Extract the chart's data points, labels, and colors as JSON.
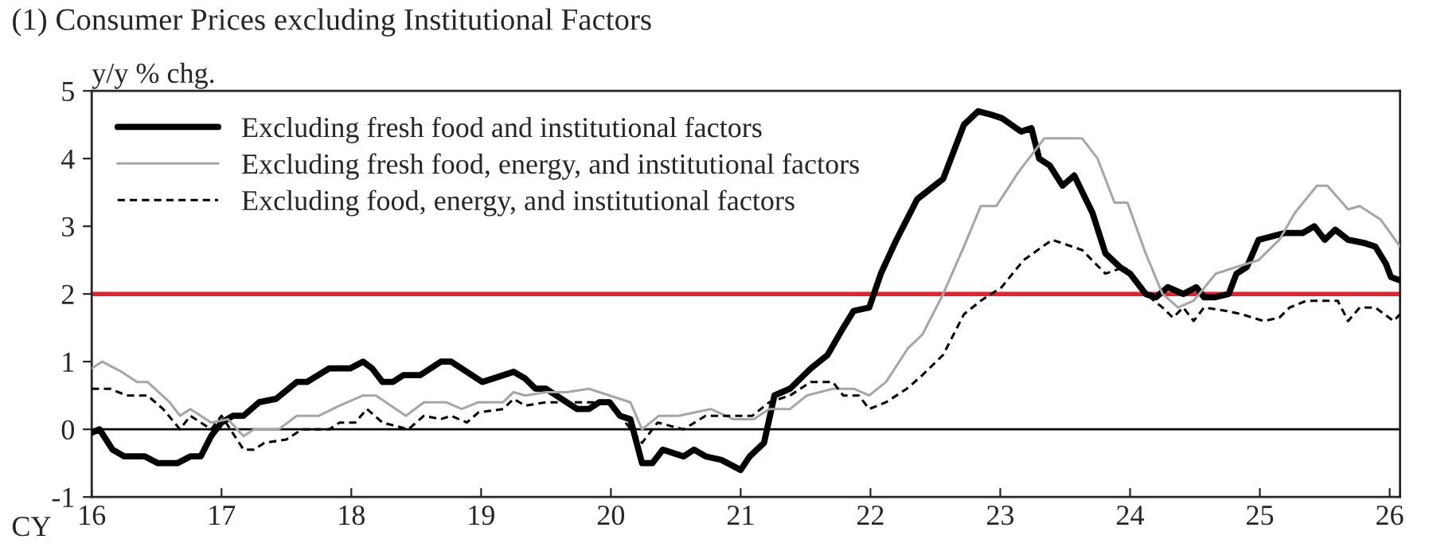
{
  "chart_data": {
    "type": "line",
    "title": "(1) Consumer Prices excluding Institutional Factors",
    "ylabel": "y/y % chg.",
    "annotations": [
      "CY"
    ],
    "xlim": [
      16,
      26.08
    ],
    "ylim": [
      -1,
      5
    ],
    "xticks": [
      16,
      17,
      18,
      19,
      20,
      21,
      22,
      23,
      24,
      25,
      26
    ],
    "yticks": [
      -1,
      0,
      1,
      2,
      3,
      4,
      5
    ],
    "grid": false,
    "legend": "top left",
    "ref_lines": [
      {
        "axis": "y",
        "value": 2,
        "color": "#e8202a"
      },
      {
        "axis": "y",
        "value": 0,
        "color": "#000000"
      }
    ],
    "series": [
      {
        "name": "Excluding fresh food and institutional factors",
        "color": "#000000",
        "line_style": "solid",
        "x": [
          16.0,
          16.06,
          16.16,
          16.25,
          16.41,
          16.51,
          16.66,
          16.76,
          16.84,
          16.92,
          17.0,
          17.09,
          17.17,
          17.29,
          17.42,
          17.58,
          17.66,
          17.83,
          17.99,
          18.09,
          18.16,
          18.24,
          18.32,
          18.4,
          18.53,
          18.69,
          18.77,
          18.85,
          18.93,
          19.01,
          19.09,
          19.17,
          19.25,
          19.34,
          19.42,
          19.5,
          19.58,
          19.66,
          19.74,
          19.83,
          19.91,
          19.99,
          20.07,
          20.15,
          20.24,
          20.32,
          20.4,
          20.48,
          20.56,
          20.64,
          20.73,
          20.85,
          21.0,
          21.07,
          21.18,
          21.26,
          21.38,
          21.54,
          21.67,
          21.79,
          21.87,
          21.99,
          22.08,
          22.2,
          22.36,
          22.56,
          22.72,
          22.83,
          22.93,
          23.01,
          23.16,
          23.24,
          23.3,
          23.38,
          23.48,
          23.57,
          23.71,
          23.81,
          23.92,
          24.0,
          24.12,
          24.2,
          24.29,
          24.41,
          24.51,
          24.57,
          24.65,
          24.76,
          24.82,
          24.9,
          24.99,
          25.09,
          25.19,
          25.33,
          25.42,
          25.5,
          25.58,
          25.68,
          25.81,
          25.89,
          25.97,
          26.01,
          26.08
        ],
        "values": [
          -0.05,
          0.0,
          -0.3,
          -0.4,
          -0.4,
          -0.5,
          -0.5,
          -0.4,
          -0.4,
          -0.1,
          0.1,
          0.2,
          0.2,
          0.4,
          0.45,
          0.7,
          0.7,
          0.9,
          0.9,
          1.0,
          0.9,
          0.7,
          0.7,
          0.8,
          0.8,
          1.0,
          1.0,
          0.9,
          0.8,
          0.7,
          0.75,
          0.8,
          0.85,
          0.75,
          0.6,
          0.6,
          0.5,
          0.4,
          0.3,
          0.3,
          0.4,
          0.4,
          0.2,
          0.15,
          -0.5,
          -0.5,
          -0.3,
          -0.35,
          -0.4,
          -0.3,
          -0.4,
          -0.45,
          -0.6,
          -0.4,
          -0.2,
          0.5,
          0.6,
          0.9,
          1.1,
          1.5,
          1.75,
          1.8,
          2.3,
          2.8,
          3.4,
          3.7,
          4.5,
          4.7,
          4.65,
          4.6,
          4.4,
          4.45,
          4.0,
          3.9,
          3.6,
          3.75,
          3.2,
          2.6,
          2.4,
          2.3,
          2.0,
          1.95,
          2.1,
          2.0,
          2.1,
          1.95,
          1.95,
          2.0,
          2.3,
          2.4,
          2.8,
          2.85,
          2.9,
          2.9,
          3.0,
          2.8,
          2.95,
          2.8,
          2.75,
          2.7,
          2.45,
          2.25,
          2.2
        ]
      },
      {
        "name": "Excluding fresh food, energy, and institutional factors",
        "color": "#a6a6a6",
        "line_style": "solid",
        "x": [
          16.0,
          16.08,
          16.23,
          16.35,
          16.43,
          16.6,
          16.68,
          16.76,
          16.92,
          17.05,
          17.17,
          17.25,
          17.44,
          17.58,
          17.75,
          17.91,
          18.09,
          18.19,
          18.42,
          18.56,
          18.73,
          18.85,
          18.98,
          19.17,
          19.25,
          19.34,
          19.5,
          19.66,
          19.83,
          19.99,
          20.15,
          20.24,
          20.37,
          20.52,
          20.77,
          20.94,
          21.1,
          21.22,
          21.38,
          21.51,
          21.71,
          21.87,
          21.99,
          22.12,
          22.29,
          22.4,
          22.56,
          22.72,
          22.85,
          22.97,
          23.14,
          23.34,
          23.63,
          23.75,
          23.88,
          23.98,
          24.12,
          24.25,
          24.37,
          24.49,
          24.66,
          24.82,
          24.99,
          25.15,
          25.27,
          25.44,
          25.52,
          25.68,
          25.77,
          25.93,
          26.08
        ],
        "values": [
          0.9,
          1.0,
          0.85,
          0.7,
          0.7,
          0.4,
          0.2,
          0.3,
          0.1,
          0.15,
          -0.1,
          0.0,
          0.0,
          0.2,
          0.2,
          0.35,
          0.5,
          0.5,
          0.2,
          0.4,
          0.4,
          0.3,
          0.4,
          0.4,
          0.55,
          0.5,
          0.55,
          0.55,
          0.6,
          0.5,
          0.4,
          0.0,
          0.2,
          0.2,
          0.3,
          0.15,
          0.15,
          0.3,
          0.3,
          0.5,
          0.6,
          0.6,
          0.5,
          0.7,
          1.2,
          1.4,
          2.0,
          2.7,
          3.3,
          3.3,
          3.8,
          4.3,
          4.3,
          4.0,
          3.35,
          3.35,
          2.6,
          2.0,
          1.8,
          1.9,
          2.3,
          2.4,
          2.5,
          2.8,
          3.2,
          3.6,
          3.6,
          3.25,
          3.3,
          3.1,
          2.7
        ]
      },
      {
        "name": "Excluding food, energy, and institutional factors",
        "color": "#000000",
        "line_style": "dashed",
        "x": [
          16.0,
          16.14,
          16.27,
          16.43,
          16.55,
          16.68,
          16.76,
          16.92,
          17.0,
          17.17,
          17.25,
          17.33,
          17.5,
          17.62,
          17.83,
          17.91,
          18.03,
          18.12,
          18.24,
          18.44,
          18.56,
          18.69,
          18.77,
          18.89,
          18.98,
          19.17,
          19.25,
          19.34,
          19.5,
          19.66,
          19.83,
          19.99,
          20.07,
          20.24,
          20.36,
          20.56,
          20.73,
          20.89,
          21.09,
          21.22,
          21.38,
          21.54,
          21.71,
          21.79,
          21.91,
          21.99,
          22.12,
          22.28,
          22.4,
          22.56,
          22.72,
          22.85,
          23.01,
          23.18,
          23.4,
          23.63,
          23.81,
          23.96,
          24.12,
          24.25,
          24.33,
          24.41,
          24.49,
          24.57,
          24.74,
          24.86,
          25.03,
          25.15,
          25.23,
          25.36,
          25.6,
          25.68,
          25.77,
          25.89,
          26.03,
          26.08
        ],
        "values": [
          0.6,
          0.6,
          0.5,
          0.5,
          0.3,
          0.0,
          0.2,
          0.0,
          0.2,
          -0.3,
          -0.3,
          -0.2,
          -0.15,
          0.0,
          0.0,
          0.1,
          0.1,
          0.3,
          0.1,
          0.0,
          0.2,
          0.15,
          0.2,
          0.1,
          0.25,
          0.3,
          0.45,
          0.35,
          0.4,
          0.4,
          0.4,
          0.4,
          0.2,
          -0.2,
          0.1,
          0.0,
          0.2,
          0.2,
          0.2,
          0.4,
          0.5,
          0.7,
          0.7,
          0.5,
          0.5,
          0.3,
          0.4,
          0.6,
          0.8,
          1.1,
          1.7,
          1.9,
          2.1,
          2.5,
          2.8,
          2.65,
          2.3,
          2.4,
          2.0,
          1.8,
          1.65,
          1.8,
          1.6,
          1.8,
          1.75,
          1.7,
          1.6,
          1.65,
          1.8,
          1.9,
          1.9,
          1.6,
          1.8,
          1.8,
          1.6,
          1.7
        ]
      }
    ]
  }
}
